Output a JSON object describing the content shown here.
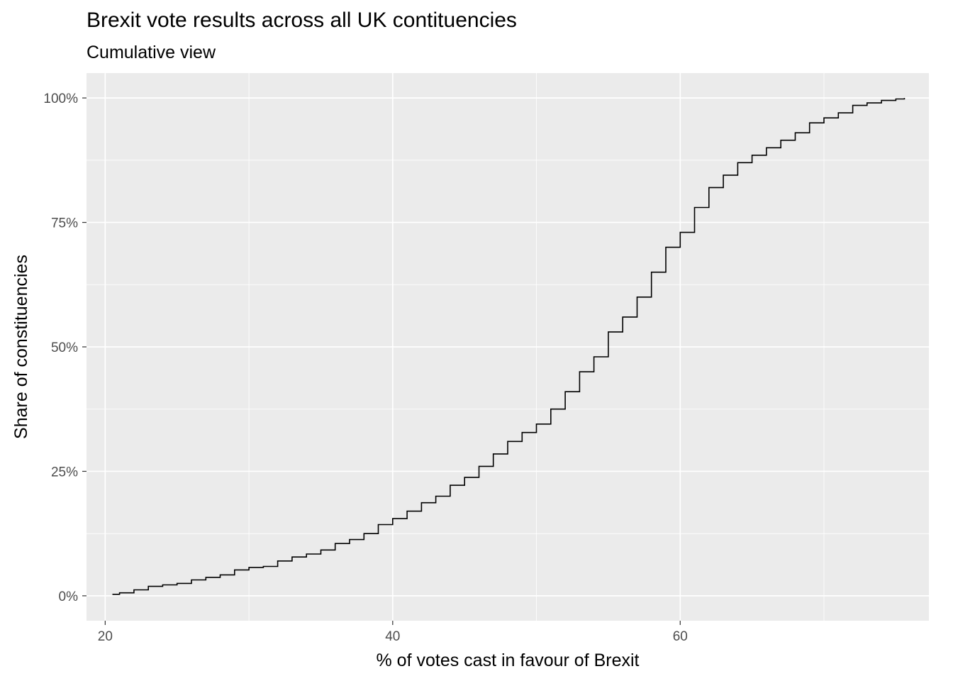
{
  "chart_data": {
    "type": "line",
    "title": "Brexit vote results across all UK contituencies",
    "subtitle": "Cumulative view",
    "xlabel": "% of votes cast in favour of Brexit",
    "ylabel": "Share of constituencies",
    "xlim": [
      18.7,
      77.3
    ],
    "ylim": [
      -0.05,
      1.05
    ],
    "x_ticks": [
      20,
      40,
      60
    ],
    "x_tick_labels": [
      "20",
      "40",
      "60"
    ],
    "x_minor_ticks": [
      30,
      50,
      70
    ],
    "y_ticks": [
      0,
      0.25,
      0.5,
      0.75,
      1.0
    ],
    "y_tick_labels": [
      "0%",
      "25%",
      "50%",
      "75%",
      "100%"
    ],
    "y_minor_ticks": [
      0.125,
      0.375,
      0.625,
      0.875
    ],
    "grid": true,
    "colors": {
      "panel": "#ebebeb",
      "grid": "#ffffff",
      "line": "#000000",
      "tick_text": "#4d4d4d",
      "tick_mark": "#333333"
    },
    "series": [
      {
        "x": [
          20.5,
          21.0,
          22.0,
          23.0,
          24.0,
          25.0,
          26.0,
          27.0,
          28.0,
          29.0,
          30.0,
          31.0,
          32.0,
          33.0,
          34.0,
          35.0,
          36.0,
          37.0,
          38.0,
          39.0,
          40.0,
          41.0,
          42.0,
          43.0,
          44.0,
          45.0,
          46.0,
          47.0,
          48.0,
          49.0,
          50.0,
          51.0,
          52.0,
          53.0,
          54.0,
          55.0,
          56.0,
          57.0,
          58.0,
          59.0,
          60.0,
          61.0,
          62.0,
          63.0,
          64.0,
          65.0,
          66.0,
          67.0,
          68.0,
          69.0,
          70.0,
          71.0,
          72.0,
          73.0,
          74.0,
          75.0,
          75.6
        ],
        "y": [
          0.003,
          0.006,
          0.012,
          0.019,
          0.022,
          0.025,
          0.032,
          0.037,
          0.042,
          0.052,
          0.057,
          0.059,
          0.07,
          0.078,
          0.084,
          0.092,
          0.105,
          0.113,
          0.125,
          0.143,
          0.155,
          0.17,
          0.187,
          0.2,
          0.222,
          0.238,
          0.26,
          0.285,
          0.31,
          0.328,
          0.345,
          0.375,
          0.41,
          0.45,
          0.48,
          0.53,
          0.56,
          0.6,
          0.65,
          0.7,
          0.73,
          0.78,
          0.82,
          0.845,
          0.87,
          0.885,
          0.9,
          0.915,
          0.93,
          0.95,
          0.96,
          0.97,
          0.985,
          0.99,
          0.995,
          0.998,
          1.0
        ]
      }
    ]
  }
}
